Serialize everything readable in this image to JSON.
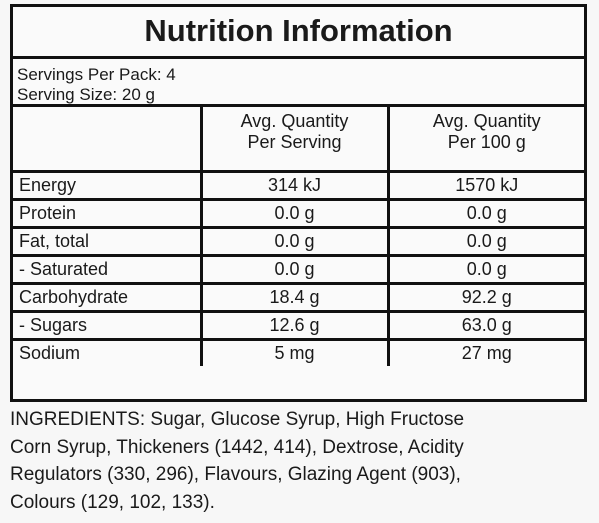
{
  "title": "Nutrition Information",
  "servings": [
    "Servings Per Pack: 4",
    "Serving Size: 20 g"
  ],
  "table": {
    "header": [
      [
        "Avg. Quantity",
        "Per Serving"
      ],
      [
        "Avg. Quantity",
        "Per 100 g"
      ]
    ],
    "rows": [
      [
        "Energy",
        "314 kJ",
        "1570 kJ"
      ],
      [
        "Protein",
        "0.0 g",
        "0.0 g"
      ],
      [
        "Fat, total",
        "0.0 g",
        "0.0 g"
      ],
      [
        "- Saturated",
        "0.0 g",
        "0.0 g"
      ],
      [
        "Carbohydrate",
        "18.4 g",
        "92.2 g"
      ],
      [
        "- Sugars",
        "12.6 g",
        "63.0 g"
      ],
      [
        "Sodium",
        "5 mg",
        "27 mg"
      ]
    ]
  },
  "ingredients": [
    "INGREDIENTS: Sugar, Glucose Syrup, High Fructose",
    "Corn Syrup, Thickeners (1442, 414), Dextrose, Acidity",
    "Regulators (330, 296), Flavours, Glazing Agent (903),",
    "Colours (129, 102, 133)."
  ]
}
